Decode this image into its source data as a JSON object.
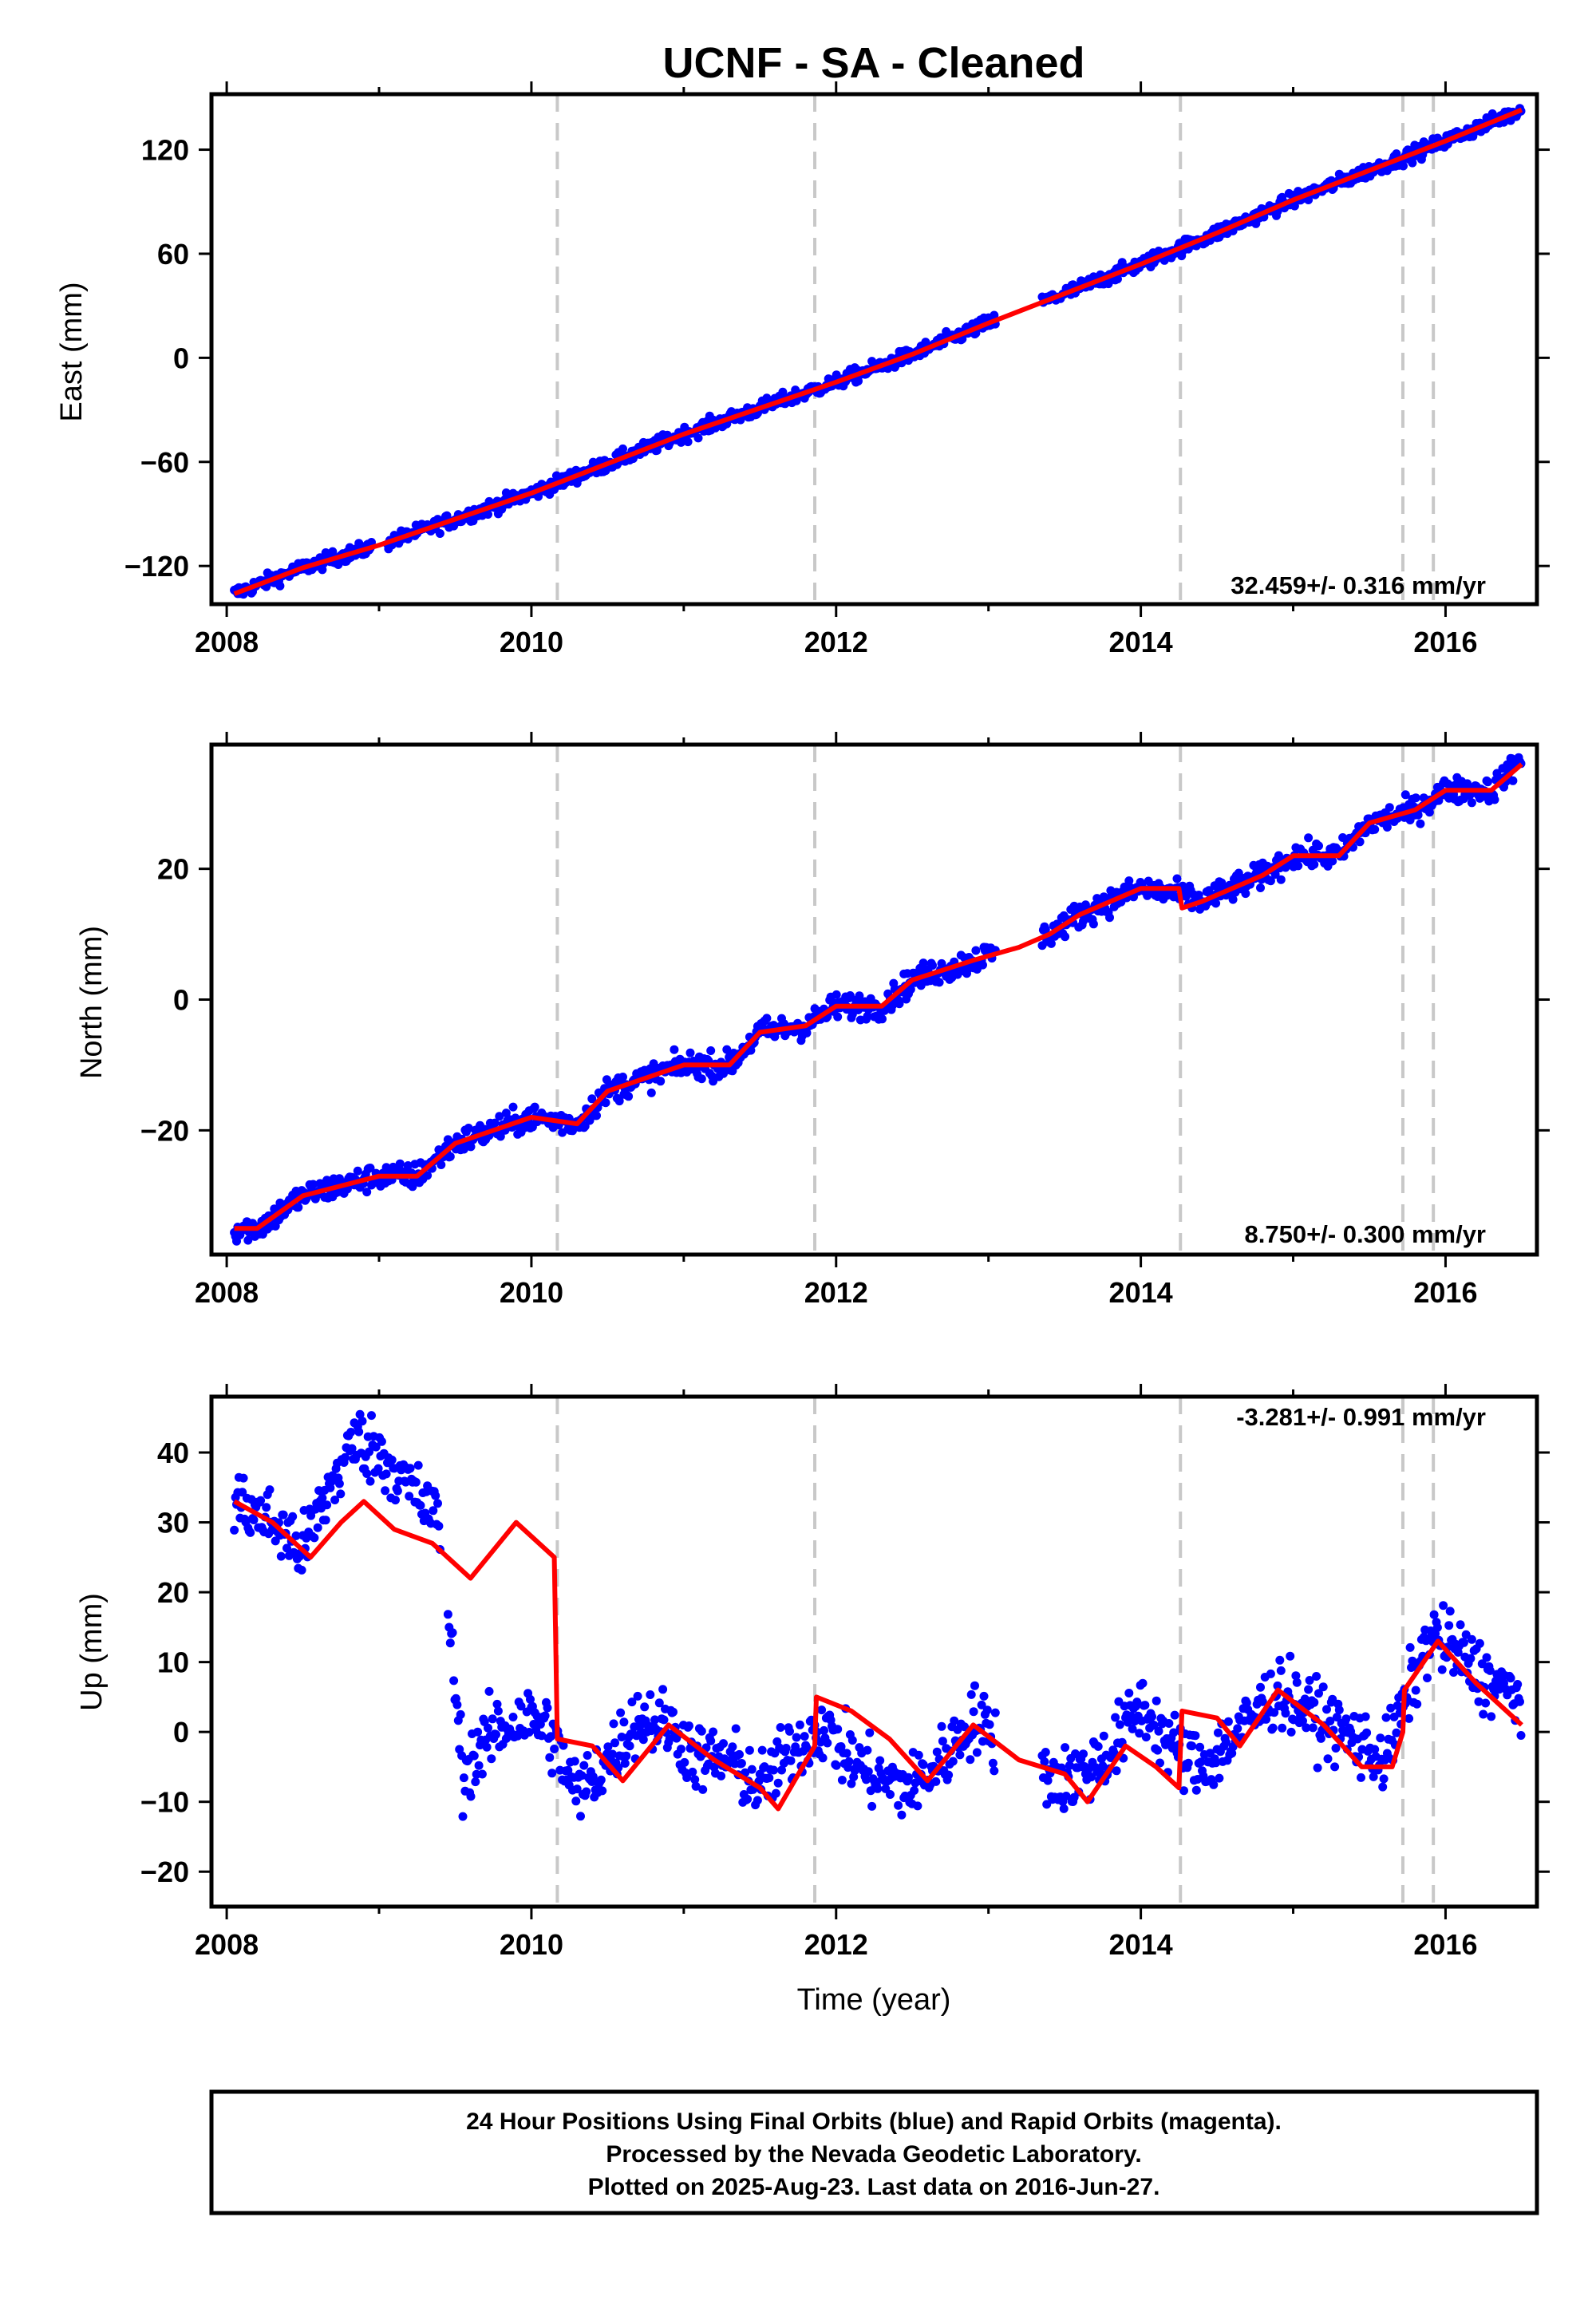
{
  "chart_data": [
    {
      "type": "scatter",
      "title": "UCNF  - SA - Cleaned",
      "xlabel": "",
      "ylabel": "East (mm)",
      "xlim": [
        2007.9,
        2016.6
      ],
      "ylim": [
        -142,
        152
      ],
      "xticks": [
        2008,
        2010,
        2012,
        2014,
        2016
      ],
      "yticks": [
        -120,
        -60,
        0,
        60,
        120
      ],
      "rate_text": "32.459+/- 0.316 mm/yr",
      "rate_position": "bottom-right",
      "grid": false,
      "events": [
        2010.17,
        2011.86,
        2014.26,
        2015.72,
        2015.92
      ],
      "gaps": [
        [
          2008.95,
          2009.05
        ],
        [
          2013.05,
          2013.35
        ]
      ],
      "series": [
        {
          "name": "24 Hour Positions Using Final Orbits",
          "color": "#0000ff",
          "x": [
            2008.05,
            2008.5,
            2009.0,
            2009.5,
            2010.0,
            2010.5,
            2011.0,
            2011.5,
            2012.0,
            2012.5,
            2013.0,
            2013.5,
            2014.0,
            2014.5,
            2015.0,
            2015.5,
            2016.0,
            2016.5
          ],
          "y": [
            -136,
            -121,
            -108,
            -93,
            -78,
            -61,
            -44,
            -29,
            -14,
            2,
            20,
            37,
            54,
            72,
            91,
            108,
            125,
            143
          ],
          "noise": 3
        },
        {
          "name": "model",
          "color": "#ff0000",
          "x": [
            2008.05,
            2008.5,
            2009.0,
            2009.5,
            2010.0,
            2010.5,
            2011.0,
            2011.5,
            2012.0,
            2012.5,
            2013.0,
            2013.5,
            2014.0,
            2014.5,
            2015.0,
            2015.5,
            2016.0,
            2016.5
          ],
          "y": [
            -136,
            -121,
            -108,
            -93,
            -78,
            -61,
            -44,
            -29,
            -14,
            2,
            20,
            37,
            54,
            72,
            91,
            108,
            125,
            143
          ]
        }
      ]
    },
    {
      "type": "scatter",
      "title": "",
      "xlabel": "",
      "ylabel": "North (mm)",
      "xlim": [
        2007.9,
        2016.6
      ],
      "ylim": [
        -39,
        39
      ],
      "xticks": [
        2008,
        2010,
        2012,
        2014,
        2016
      ],
      "yticks": [
        -20,
        0,
        20
      ],
      "rate_text": "8.750+/- 0.300 mm/yr",
      "rate_position": "bottom-right",
      "grid": false,
      "events": [
        2010.17,
        2011.86,
        2014.26,
        2015.72,
        2015.92
      ],
      "gaps": [
        [
          2013.05,
          2013.35
        ]
      ],
      "series": [
        {
          "name": "24 Hour Positions Using Final Orbits",
          "color": "#0000ff",
          "x": [
            2008.05,
            2008.2,
            2008.5,
            2009.0,
            2009.25,
            2009.5,
            2010.0,
            2010.3,
            2010.5,
            2011.0,
            2011.3,
            2011.5,
            2011.8,
            2012.0,
            2012.3,
            2012.5,
            2012.9,
            2013.4,
            2013.6,
            2014.0,
            2014.26,
            2014.4,
            2014.8,
            2015.0,
            2015.3,
            2015.5,
            2015.8,
            2016.0,
            2016.3,
            2016.5
          ],
          "y": [
            -35,
            -35,
            -30,
            -27,
            -27,
            -22,
            -18,
            -19,
            -14,
            -10,
            -10,
            -5,
            -4,
            -1,
            -1,
            3,
            6,
            10,
            13,
            17,
            16,
            15,
            19,
            22,
            22,
            27,
            29,
            32,
            32,
            37
          ],
          "noise": 1.4
        },
        {
          "name": "model",
          "color": "#ff0000",
          "x": [
            2008.05,
            2008.2,
            2008.5,
            2009.0,
            2009.25,
            2009.5,
            2010.0,
            2010.3,
            2010.5,
            2011.0,
            2011.3,
            2011.5,
            2011.8,
            2012.0,
            2012.3,
            2012.5,
            2012.9,
            2013.2,
            2013.4,
            2013.6,
            2014.0,
            2014.25,
            2014.27,
            2014.4,
            2014.8,
            2015.0,
            2015.3,
            2015.5,
            2015.8,
            2016.0,
            2016.3,
            2016.5
          ],
          "y": [
            -35,
            -35,
            -30,
            -27,
            -27,
            -22,
            -18,
            -19,
            -14,
            -10,
            -10,
            -5,
            -4,
            -1,
            -1,
            3,
            6,
            8,
            10,
            13,
            17,
            17,
            14,
            15,
            19,
            22,
            22,
            27,
            29,
            32,
            32,
            36
          ]
        }
      ]
    },
    {
      "type": "scatter",
      "title": "",
      "xlabel": "Time (year)",
      "ylabel": "Up (mm)",
      "xlim": [
        2007.9,
        2016.6
      ],
      "ylim": [
        -25,
        48
      ],
      "xticks": [
        2008,
        2010,
        2012,
        2014,
        2016
      ],
      "yticks": [
        -20,
        -10,
        0,
        10,
        20,
        30,
        40
      ],
      "rate_text": "-3.281+/- 0.991 mm/yr",
      "rate_position": "top-right",
      "grid": false,
      "events": [
        2010.17,
        2011.86,
        2014.26,
        2015.72,
        2015.92
      ],
      "gaps": [
        [
          2009.4,
          2009.45
        ],
        [
          2013.05,
          2013.35
        ]
      ],
      "series": [
        {
          "name": "24 Hour Positions Using Final Orbits",
          "color": "#0000ff",
          "x": [
            2008.05,
            2008.3,
            2008.5,
            2008.7,
            2008.85,
            2009.05,
            2009.2,
            2009.4,
            2009.55,
            2009.75,
            2009.95,
            2010.1,
            2010.3,
            2010.5,
            2010.7,
            2010.9,
            2011.1,
            2011.3,
            2011.5,
            2011.7,
            2011.9,
            2012.1,
            2012.3,
            2012.5,
            2012.7,
            2012.9,
            2013.0,
            2013.45,
            2013.6,
            2013.8,
            2014.0,
            2014.2,
            2014.4,
            2014.6,
            2014.9,
            2015.1,
            2015.4,
            2015.6,
            2015.9,
            2016.1,
            2016.3,
            2016.5
          ],
          "y": [
            33,
            30,
            26,
            36,
            42,
            39,
            35,
            30,
            -6,
            0,
            2,
            1,
            -9,
            -4,
            2,
            1,
            -4,
            -4,
            -8,
            -3,
            1,
            -4,
            -7,
            -8,
            -4,
            2,
            0,
            -7,
            -6,
            -3,
            4,
            -2,
            -5,
            -1,
            6,
            3,
            -1,
            -4,
            14,
            11,
            7,
            5
          ],
          "noise": 3.5
        },
        {
          "name": "model",
          "color": "#ff0000",
          "x": [
            2008.05,
            2008.3,
            2008.55,
            2008.75,
            2008.9,
            2009.1,
            2009.35,
            2009.6,
            2009.9,
            2010.15,
            2010.17,
            2010.4,
            2010.6,
            2010.9,
            2011.2,
            2011.5,
            2011.62,
            2011.86,
            2011.87,
            2012.1,
            2012.35,
            2012.6,
            2012.9,
            2013.2,
            2013.5,
            2013.65,
            2013.9,
            2014.1,
            2014.25,
            2014.27,
            2014.5,
            2014.65,
            2014.9,
            2015.2,
            2015.45,
            2015.65,
            2015.72,
            2015.73,
            2015.95,
            2016.2,
            2016.5
          ],
          "y": [
            33,
            30,
            25,
            30,
            33,
            29,
            27,
            22,
            30,
            25,
            -1,
            -2,
            -7,
            1,
            -4,
            -8,
            -11,
            -2,
            5,
            3,
            -1,
            -7,
            1,
            -4,
            -6,
            -10,
            -2,
            -5,
            -8,
            3,
            2,
            -2,
            6,
            1,
            -5,
            -5,
            0,
            6,
            13,
            7,
            1
          ]
        }
      ]
    }
  ],
  "footer": {
    "line1": "24 Hour Positions Using Final Orbits (blue) and Rapid Orbits (magenta).",
    "line2": "Processed by the Nevada Geodetic Laboratory.",
    "line3": "Plotted on 2025-Aug-23. Last data on 2016-Jun-27."
  },
  "colors": {
    "points": "#0000ff",
    "model": "#ff0000",
    "event_lines": "#c8c8c8",
    "frame": "#000000"
  }
}
